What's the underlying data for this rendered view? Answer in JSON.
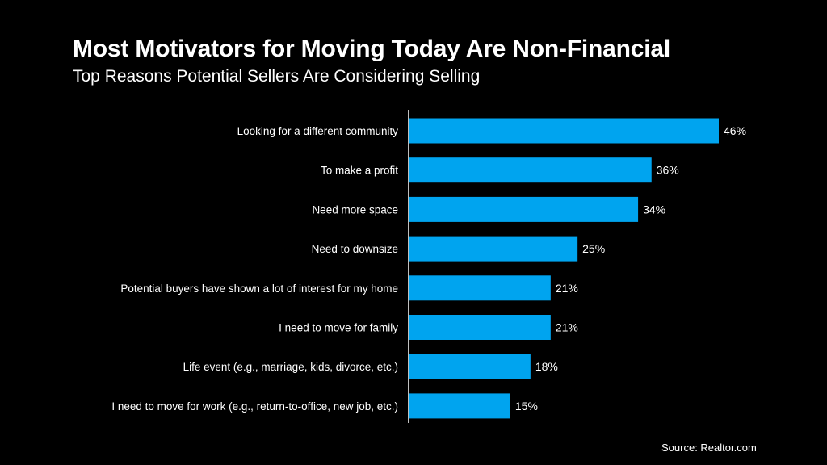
{
  "header": {
    "title": "Most Motivators for Moving Today Are Non-Financial",
    "subtitle": "Top Reasons Potential Sellers Are Considering Selling"
  },
  "footer": {
    "source": "Source: Realtor.com"
  },
  "colors": {
    "background": "#000000",
    "bar": "#00a4ef",
    "text": "#ffffff",
    "axis": "#ffffff"
  },
  "chart_data": {
    "type": "bar",
    "orientation": "horizontal",
    "title": "Most Motivators for Moving Today Are Non-Financial",
    "subtitle": "Top Reasons Potential Sellers Are Considering Selling",
    "categories": [
      "Looking for a different community",
      "To make a profit",
      "Need more space",
      "Need to downsize",
      "Potential buyers have shown a lot of interest for my home",
      "I need to move for family",
      "Life event (e.g., marriage, kids, divorce, etc.)",
      "I need to move for work (e.g., return-to-office, new job, etc.)"
    ],
    "values": [
      46,
      36,
      34,
      25,
      21,
      21,
      18,
      15
    ],
    "data_labels": [
      "46%",
      "36%",
      "34%",
      "25%",
      "21%",
      "21%",
      "18%",
      "15%"
    ],
    "unit": "%",
    "xlim": [
      0,
      46
    ],
    "grid": false,
    "legend": "none"
  }
}
